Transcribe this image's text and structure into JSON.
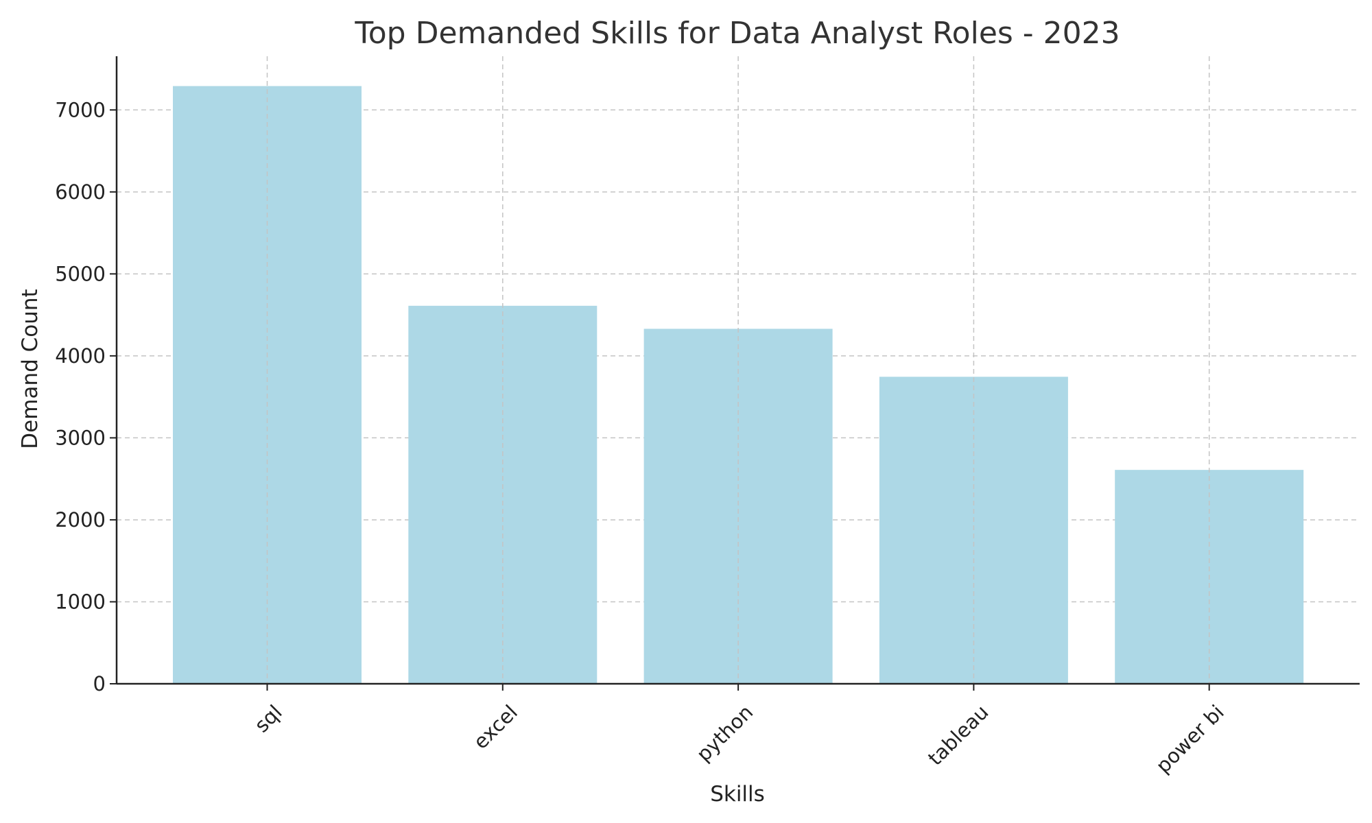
{
  "chart_data": {
    "type": "bar",
    "title": "Top Demanded Skills for Data Analyst Roles - 2023",
    "xlabel": "Skills",
    "ylabel": "Demand Count",
    "categories": [
      "sql",
      "excel",
      "python",
      "tableau",
      "power bi"
    ],
    "values": [
      7291,
      4611,
      4330,
      3745,
      2609
    ],
    "ylim": [
      0,
      7655
    ],
    "yticks": [
      0,
      1000,
      2000,
      3000,
      4000,
      5000,
      6000,
      7000
    ],
    "grid": true,
    "legend": "none",
    "bar_color": "#add8e6"
  }
}
